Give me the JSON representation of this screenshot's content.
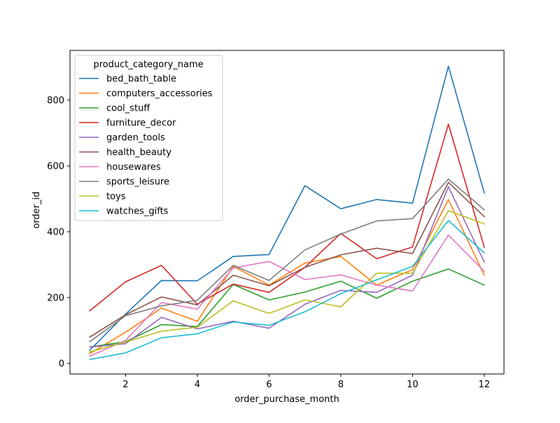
{
  "chart_data": {
    "type": "line",
    "title": "",
    "xlabel": "order_purchase_month",
    "ylabel": "order_id",
    "xlim": [
      0.45,
      12.55
    ],
    "ylim": [
      -32,
      951
    ],
    "xticks": [
      2,
      4,
      6,
      8,
      10,
      12
    ],
    "yticks": [
      0,
      200,
      400,
      600,
      800
    ],
    "grid": false,
    "legend": {
      "title": "product_category_name",
      "placement": "upper-left"
    },
    "x": [
      1,
      2,
      3,
      4,
      5,
      6,
      7,
      8,
      9,
      10,
      11,
      12
    ],
    "series": [
      {
        "name": "bed_bath_table",
        "color": "#1f77b4",
        "values": [
          40,
          150,
          252,
          251,
          325,
          331,
          540,
          470,
          498,
          487,
          903,
          518
        ]
      },
      {
        "name": "computers_accessories",
        "color": "#ff7f0e",
        "values": [
          30,
          95,
          168,
          128,
          295,
          238,
          305,
          325,
          238,
          285,
          498,
          268
        ]
      },
      {
        "name": "cool_stuff",
        "color": "#2ca02c",
        "values": [
          50,
          66,
          118,
          112,
          240,
          193,
          217,
          250,
          198,
          250,
          287,
          238
        ]
      },
      {
        "name": "furniture_decor",
        "color": "#d62728",
        "values": [
          160,
          248,
          298,
          180,
          241,
          216,
          292,
          395,
          318,
          354,
          727,
          353
        ]
      },
      {
        "name": "garden_tools",
        "color": "#9467bd",
        "values": [
          50,
          60,
          140,
          105,
          128,
          107,
          180,
          222,
          216,
          268,
          537,
          308
        ]
      },
      {
        "name": "health_beauty",
        "color": "#8c564b",
        "values": [
          80,
          148,
          202,
          178,
          268,
          236,
          292,
          330,
          350,
          334,
          550,
          446
        ]
      },
      {
        "name": "housewares",
        "color": "#e377c2",
        "values": [
          22,
          70,
          185,
          165,
          290,
          310,
          255,
          269,
          238,
          220,
          390,
          280
        ]
      },
      {
        "name": "sports_leisure",
        "color": "#7f7f7f",
        "values": [
          66,
          145,
          175,
          192,
          298,
          252,
          345,
          393,
          433,
          440,
          560,
          467
        ]
      },
      {
        "name": "toys",
        "color": "#bcbd22",
        "values": [
          35,
          65,
          98,
          110,
          190,
          152,
          193,
          172,
          274,
          274,
          464,
          424
        ]
      },
      {
        "name": "watches_gifts",
        "color": "#17becf",
        "values": [
          12,
          32,
          78,
          90,
          126,
          116,
          157,
          212,
          254,
          295,
          434,
          336
        ]
      }
    ]
  }
}
